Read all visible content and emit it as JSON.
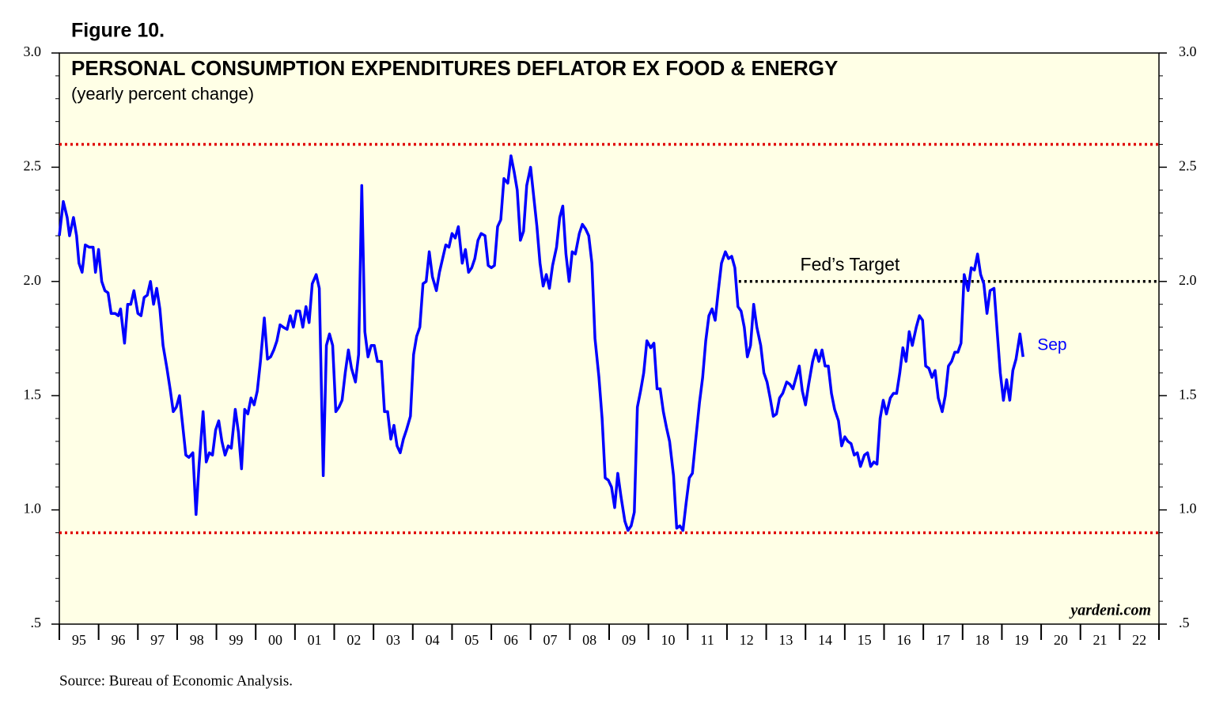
{
  "figure_label": "Figure 10.",
  "source": "Source: Bureau of Economic Analysis.",
  "chart_data": {
    "type": "line",
    "title": "PERSONAL CONSUMPTION EXPENDITURES DEFLATOR EX FOOD & ENERGY",
    "subtitle": "(yearly percent change)",
    "watermark": "yardeni.com",
    "background": "#ffffe6",
    "xlim": [
      1995,
      2023
    ],
    "ylim": [
      0.5,
      3.0
    ],
    "yticks": [
      {
        "value": 0.5,
        "label": ".5"
      },
      {
        "value": 1.0,
        "label": "1.0"
      },
      {
        "value": 1.5,
        "label": "1.5"
      },
      {
        "value": 2.0,
        "label": "2.0"
      },
      {
        "value": 2.5,
        "label": "2.5"
      },
      {
        "value": 3.0,
        "label": "3.0"
      }
    ],
    "xticks": [
      {
        "value": 1995.5,
        "label": "95"
      },
      {
        "value": 1996.5,
        "label": "96"
      },
      {
        "value": 1997.5,
        "label": "97"
      },
      {
        "value": 1998.5,
        "label": "98"
      },
      {
        "value": 1999.5,
        "label": "99"
      },
      {
        "value": 2000.5,
        "label": "00"
      },
      {
        "value": 2001.5,
        "label": "01"
      },
      {
        "value": 2002.5,
        "label": "02"
      },
      {
        "value": 2003.5,
        "label": "03"
      },
      {
        "value": 2004.5,
        "label": "04"
      },
      {
        "value": 2005.5,
        "label": "05"
      },
      {
        "value": 2006.5,
        "label": "06"
      },
      {
        "value": 2007.5,
        "label": "07"
      },
      {
        "value": 2008.5,
        "label": "08"
      },
      {
        "value": 2009.5,
        "label": "09"
      },
      {
        "value": 2010.5,
        "label": "10"
      },
      {
        "value": 2011.5,
        "label": "11"
      },
      {
        "value": 2012.5,
        "label": "12"
      },
      {
        "value": 2013.5,
        "label": "13"
      },
      {
        "value": 2014.5,
        "label": "14"
      },
      {
        "value": 2015.5,
        "label": "15"
      },
      {
        "value": 2016.5,
        "label": "16"
      },
      {
        "value": 2017.5,
        "label": "17"
      },
      {
        "value": 2018.5,
        "label": "18"
      },
      {
        "value": 2019.5,
        "label": "19"
      },
      {
        "value": 2020.5,
        "label": "20"
      },
      {
        "value": 2021.5,
        "label": "21"
      },
      {
        "value": 2022.5,
        "label": "22"
      }
    ],
    "reference_lines": [
      {
        "value": 2.6,
        "color": "#e00000"
      },
      {
        "value": 0.9,
        "color": "#e00000"
      }
    ],
    "target_line": {
      "value": 2.0,
      "start": 2012.3,
      "label": "Fed’s Target",
      "color": "#000000"
    },
    "end_label": "Sep",
    "x": [
      1995.0,
      1995.1,
      1995.2,
      1995.26,
      1995.36,
      1995.44,
      1995.5,
      1995.58,
      1995.66,
      1995.76,
      1995.86,
      1995.92,
      1996.0,
      1996.08,
      1996.16,
      1996.24,
      1996.32,
      1996.42,
      1996.5,
      1996.56,
      1996.66,
      1996.74,
      1996.82,
      1996.9,
      1997.0,
      1997.08,
      1997.16,
      1997.24,
      1997.32,
      1997.4,
      1997.48,
      1997.56,
      1997.64,
      1997.74,
      1997.82,
      1997.9,
      1997.98,
      1998.06,
      1998.14,
      1998.22,
      1998.3,
      1998.4,
      1998.48,
      1998.56,
      1998.66,
      1998.74,
      1998.82,
      1998.9,
      1998.98,
      1999.06,
      1999.14,
      1999.22,
      1999.3,
      1999.38,
      1999.48,
      1999.56,
      1999.64,
      1999.72,
      1999.8,
      1999.88,
      1999.96,
      2000.04,
      2000.12,
      2000.22,
      2000.3,
      2000.38,
      2000.46,
      2000.54,
      2000.62,
      2000.7,
      2000.8,
      2000.88,
      2000.96,
      2001.04,
      2001.12,
      2001.2,
      2001.28,
      2001.36,
      2001.44,
      2001.54,
      2001.62,
      2001.72,
      2001.8,
      2001.88,
      2001.96,
      2002.04,
      2002.12,
      2002.2,
      2002.28,
      2002.36,
      2002.44,
      2002.54,
      2002.62,
      2002.7,
      2002.78,
      2002.86,
      2002.94,
      2003.02,
      2003.1,
      2003.2,
      2003.28,
      2003.36,
      2003.44,
      2003.52,
      2003.6,
      2003.68,
      2003.76,
      2003.84,
      2003.94,
      2004.02,
      2004.1,
      2004.18,
      2004.26,
      2004.34,
      2004.42,
      2004.5,
      2004.6,
      2004.68,
      2004.76,
      2004.84,
      2004.92,
      2005.0,
      2005.08,
      2005.16,
      2005.26,
      2005.34,
      2005.42,
      2005.5,
      2005.58,
      2005.66,
      2005.74,
      2005.84,
      2005.92,
      2006.0,
      2006.08,
      2006.16,
      2006.24,
      2006.32,
      2006.42,
      2006.5,
      2006.58,
      2006.66,
      2006.74,
      2006.82,
      2006.9,
      2007.0,
      2007.08,
      2007.16,
      2007.24,
      2007.32,
      2007.4,
      2007.48,
      2007.56,
      2007.66,
      2007.74,
      2007.82,
      2007.9,
      2007.98,
      2008.06,
      2008.14,
      2008.24,
      2008.32,
      2008.4,
      2008.48,
      2008.56,
      2008.64,
      2008.74,
      2008.82,
      2008.9,
      2008.98,
      2009.06,
      2009.14,
      2009.22,
      2009.3,
      2009.4,
      2009.48,
      2009.56,
      2009.64,
      2009.72,
      2009.8,
      2009.88,
      2009.96,
      2010.06,
      2010.14,
      2010.22,
      2010.3,
      2010.38,
      2010.46,
      2010.54,
      2010.64,
      2010.72,
      2010.8,
      2010.88,
      2010.96,
      2011.04,
      2011.12,
      2011.2,
      2011.3,
      2011.38,
      2011.46,
      2011.54,
      2011.62,
      2011.7,
      2011.78,
      2011.86,
      2011.96,
      2012.04,
      2012.12,
      2012.2,
      2012.28,
      2012.36,
      2012.44,
      2012.52,
      2012.6,
      2012.68,
      2012.76,
      2012.86,
      2012.94,
      2013.02,
      2013.1,
      2013.18,
      2013.26,
      2013.34,
      2013.42,
      2013.52,
      2013.6,
      2013.68,
      2013.76,
      2013.84,
      2013.92,
      2014.0,
      2014.08,
      2014.18,
      2014.26,
      2014.34,
      2014.42,
      2014.5,
      2014.58,
      2014.66,
      2014.74,
      2014.84,
      2014.92,
      2015.0,
      2015.08,
      2015.16,
      2015.24,
      2015.32,
      2015.4,
      2015.5,
      2015.58,
      2015.66,
      2015.74,
      2015.82,
      2015.9,
      2015.98,
      2016.06,
      2016.16,
      2016.24,
      2016.32,
      2016.4,
      2016.48,
      2016.56,
      2016.64,
      2016.72,
      2016.82,
      2016.9,
      2016.98,
      2017.06,
      2017.14,
      2017.22,
      2017.3,
      2017.38,
      2017.48,
      2017.56,
      2017.64,
      2017.72,
      2017.8,
      2017.88,
      2017.96,
      2018.04,
      2018.14,
      2018.22,
      2018.3,
      2018.38,
      2018.46,
      2018.54,
      2018.62,
      2018.7,
      2018.8,
      2018.88,
      2018.96,
      2019.04,
      2019.12,
      2019.2,
      2019.28,
      2019.36,
      2019.46,
      2019.54
    ],
    "series": [
      {
        "color": "#0000ff",
        "values": [
          2.2,
          2.35,
          2.28,
          2.2,
          2.28,
          2.2,
          2.08,
          2.04,
          2.16,
          2.15,
          2.15,
          2.04,
          2.14,
          2.0,
          1.96,
          1.95,
          1.86,
          1.86,
          1.85,
          1.88,
          1.73,
          1.9,
          1.9,
          1.96,
          1.86,
          1.85,
          1.93,
          1.94,
          2.0,
          1.9,
          1.97,
          1.88,
          1.72,
          1.62,
          1.53,
          1.43,
          1.45,
          1.5,
          1.37,
          1.24,
          1.23,
          1.25,
          0.98,
          1.2,
          1.43,
          1.21,
          1.25,
          1.24,
          1.35,
          1.39,
          1.3,
          1.24,
          1.28,
          1.27,
          1.44,
          1.34,
          1.18,
          1.44,
          1.42,
          1.49,
          1.46,
          1.52,
          1.65,
          1.84,
          1.66,
          1.67,
          1.7,
          1.74,
          1.81,
          1.8,
          1.79,
          1.85,
          1.8,
          1.87,
          1.87,
          1.8,
          1.89,
          1.82,
          1.99,
          2.03,
          1.97,
          1.15,
          1.72,
          1.77,
          1.72,
          1.43,
          1.45,
          1.48,
          1.6,
          1.7,
          1.62,
          1.56,
          1.68,
          2.42,
          1.78,
          1.67,
          1.72,
          1.72,
          1.65,
          1.65,
          1.43,
          1.43,
          1.31,
          1.37,
          1.28,
          1.25,
          1.31,
          1.35,
          1.41,
          1.68,
          1.76,
          1.8,
          1.99,
          2.0,
          2.13,
          2.02,
          1.96,
          2.04,
          2.1,
          2.16,
          2.15,
          2.21,
          2.19,
          2.24,
          2.08,
          2.14,
          2.04,
          2.06,
          2.1,
          2.18,
          2.21,
          2.2,
          2.07,
          2.06,
          2.07,
          2.24,
          2.27,
          2.45,
          2.43,
          2.55,
          2.48,
          2.4,
          2.18,
          2.22,
          2.42,
          2.5,
          2.37,
          2.24,
          2.08,
          1.98,
          2.03,
          1.97,
          2.07,
          2.15,
          2.28,
          2.33,
          2.12,
          2.0,
          2.13,
          2.12,
          2.21,
          2.25,
          2.23,
          2.2,
          2.08,
          1.75,
          1.58,
          1.4,
          1.14,
          1.13,
          1.1,
          1.01,
          1.16,
          1.06,
          0.95,
          0.91,
          0.93,
          0.99,
          1.45,
          1.52,
          1.6,
          1.74,
          1.71,
          1.73,
          1.53,
          1.53,
          1.43,
          1.36,
          1.3,
          1.15,
          0.92,
          0.93,
          0.91,
          1.03,
          1.14,
          1.16,
          1.3,
          1.47,
          1.58,
          1.74,
          1.85,
          1.88,
          1.83,
          1.96,
          2.08,
          2.13,
          2.1,
          2.11,
          2.06,
          1.89,
          1.87,
          1.8,
          1.67,
          1.72,
          1.9,
          1.8,
          1.72,
          1.6,
          1.56,
          1.49,
          1.41,
          1.42,
          1.49,
          1.51,
          1.56,
          1.55,
          1.53,
          1.58,
          1.63,
          1.52,
          1.46,
          1.55,
          1.65,
          1.7,
          1.65,
          1.7,
          1.63,
          1.63,
          1.51,
          1.44,
          1.39,
          1.28,
          1.32,
          1.3,
          1.29,
          1.24,
          1.25,
          1.19,
          1.24,
          1.25,
          1.19,
          1.21,
          1.2,
          1.4,
          1.48,
          1.42,
          1.49,
          1.51,
          1.51,
          1.6,
          1.71,
          1.65,
          1.78,
          1.72,
          1.8,
          1.85,
          1.83,
          1.63,
          1.62,
          1.58,
          1.61,
          1.49,
          1.43,
          1.5,
          1.63,
          1.65,
          1.69,
          1.69,
          1.73,
          2.03,
          1.96,
          2.06,
          2.05,
          2.12,
          2.03,
          1.99,
          1.86,
          1.96,
          1.97,
          1.78,
          1.6,
          1.48,
          1.57,
          1.48,
          1.61,
          1.66,
          1.77,
          1.67
        ]
      }
    ]
  }
}
